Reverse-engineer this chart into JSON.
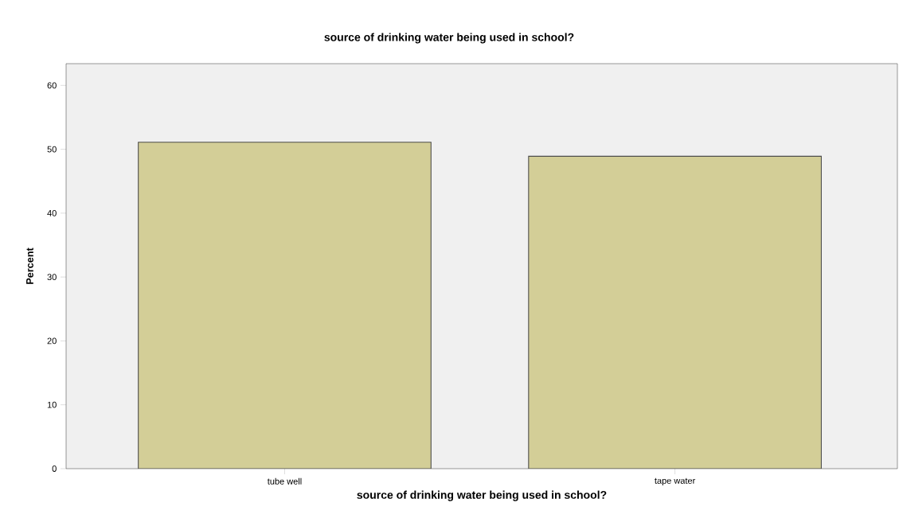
{
  "chart_data": {
    "type": "bar",
    "title": "source of drinking water being used in school?",
    "xlabel": "source of drinking water being used in school?",
    "ylabel": "Percent",
    "categories": [
      "tube well",
      "tape water"
    ],
    "values": [
      51.1,
      48.9
    ],
    "color": "#d3ce97",
    "ylim": [
      0,
      63.4
    ],
    "yticks": [
      0,
      10,
      20,
      30,
      40,
      50,
      60
    ],
    "grid": false
  }
}
